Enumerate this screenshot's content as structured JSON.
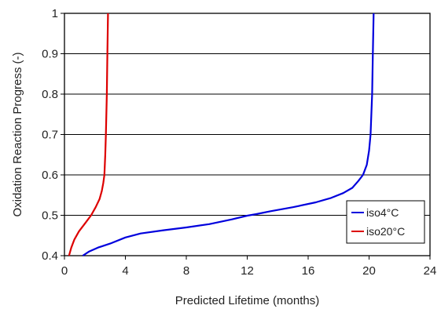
{
  "chart_data": {
    "type": "line",
    "title": "",
    "xlabel": "Predicted Lifetime (months)",
    "ylabel": "Oxidation Reaction Progress (-)",
    "xlim": [
      0,
      24
    ],
    "ylim": [
      0.4,
      1.0
    ],
    "x_ticks": [
      "0",
      "4",
      "8",
      "12",
      "16",
      "20",
      "24"
    ],
    "y_ticks": [
      "0.4",
      "0.5",
      "0.6",
      "0.7",
      "0.8",
      "0.9",
      "1"
    ],
    "grid": "horizontal",
    "legend_position": "bottom-right",
    "series": [
      {
        "name": "iso4°C",
        "color": "#0000dd",
        "points": [
          [
            1.2,
            0.4
          ],
          [
            1.6,
            0.41
          ],
          [
            2.2,
            0.42
          ],
          [
            3.0,
            0.43
          ],
          [
            4.0,
            0.445
          ],
          [
            5.0,
            0.455
          ],
          [
            6.5,
            0.463
          ],
          [
            8.0,
            0.47
          ],
          [
            9.5,
            0.478
          ],
          [
            11.0,
            0.49
          ],
          [
            12.0,
            0.499
          ],
          [
            12.6,
            0.503
          ],
          [
            13.5,
            0.51
          ],
          [
            15.0,
            0.52
          ],
          [
            16.5,
            0.532
          ],
          [
            17.5,
            0.543
          ],
          [
            18.3,
            0.555
          ],
          [
            18.9,
            0.568
          ],
          [
            19.3,
            0.585
          ],
          [
            19.6,
            0.6
          ],
          [
            19.85,
            0.625
          ],
          [
            20.0,
            0.66
          ],
          [
            20.1,
            0.7
          ],
          [
            20.15,
            0.75
          ],
          [
            20.2,
            0.8
          ],
          [
            20.25,
            0.9
          ],
          [
            20.3,
            1.0
          ]
        ]
      },
      {
        "name": "iso20°C",
        "color": "#dd0000",
        "points": [
          [
            0.3,
            0.4
          ],
          [
            0.45,
            0.42
          ],
          [
            0.65,
            0.44
          ],
          [
            0.95,
            0.46
          ],
          [
            1.35,
            0.48
          ],
          [
            1.75,
            0.5
          ],
          [
            2.05,
            0.52
          ],
          [
            2.3,
            0.54
          ],
          [
            2.45,
            0.56
          ],
          [
            2.55,
            0.58
          ],
          [
            2.62,
            0.6
          ],
          [
            2.68,
            0.65
          ],
          [
            2.72,
            0.7
          ],
          [
            2.75,
            0.75
          ],
          [
            2.78,
            0.8
          ],
          [
            2.82,
            0.9
          ],
          [
            2.86,
            1.0
          ]
        ]
      }
    ]
  }
}
